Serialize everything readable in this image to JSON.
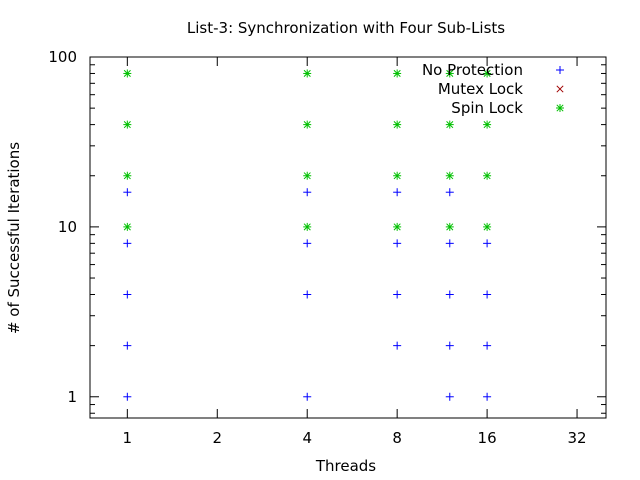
{
  "chart_data": {
    "type": "scatter",
    "title": "List-3: Synchronization with Four Sub-Lists",
    "xlabel": "Threads",
    "ylabel": "# of Successful Iterations",
    "x_scale": "log2",
    "y_scale": "log10",
    "xlim": [
      0.75,
      40
    ],
    "ylim": [
      0.75,
      100
    ],
    "x_ticks": [
      1,
      2,
      4,
      8,
      16,
      32
    ],
    "x_tick_labels": [
      "1",
      "2",
      "4",
      "8",
      "16",
      "32"
    ],
    "y_ticks": [
      1,
      10,
      100
    ],
    "y_tick_labels": [
      "1",
      "10",
      "100"
    ],
    "legend_position": "top-right",
    "grid": false,
    "series": [
      {
        "name": "No Protection",
        "marker": "plus",
        "color": "#0000ff",
        "points": [
          [
            1,
            1
          ],
          [
            1,
            2
          ],
          [
            1,
            4
          ],
          [
            1,
            8
          ],
          [
            1,
            16
          ],
          [
            4,
            1
          ],
          [
            4,
            4
          ],
          [
            4,
            8
          ],
          [
            4,
            16
          ],
          [
            8,
            2
          ],
          [
            8,
            4
          ],
          [
            8,
            8
          ],
          [
            8,
            16
          ],
          [
            12,
            1
          ],
          [
            12,
            2
          ],
          [
            12,
            4
          ],
          [
            12,
            8
          ],
          [
            12,
            16
          ],
          [
            16,
            1
          ],
          [
            16,
            2
          ],
          [
            16,
            4
          ],
          [
            16,
            8
          ]
        ]
      },
      {
        "name": "Mutex Lock",
        "marker": "cross",
        "color": "#a00000",
        "points": []
      },
      {
        "name": "Spin Lock",
        "marker": "star",
        "color": "#00c000",
        "points": [
          [
            1,
            10
          ],
          [
            1,
            20
          ],
          [
            1,
            40
          ],
          [
            1,
            80
          ],
          [
            4,
            10
          ],
          [
            4,
            20
          ],
          [
            4,
            40
          ],
          [
            4,
            80
          ],
          [
            8,
            10
          ],
          [
            8,
            20
          ],
          [
            8,
            40
          ],
          [
            8,
            80
          ],
          [
            12,
            10
          ],
          [
            12,
            20
          ],
          [
            12,
            40
          ],
          [
            12,
            80
          ],
          [
            16,
            10
          ],
          [
            16,
            20
          ],
          [
            16,
            40
          ],
          [
            16,
            80
          ]
        ]
      }
    ]
  }
}
